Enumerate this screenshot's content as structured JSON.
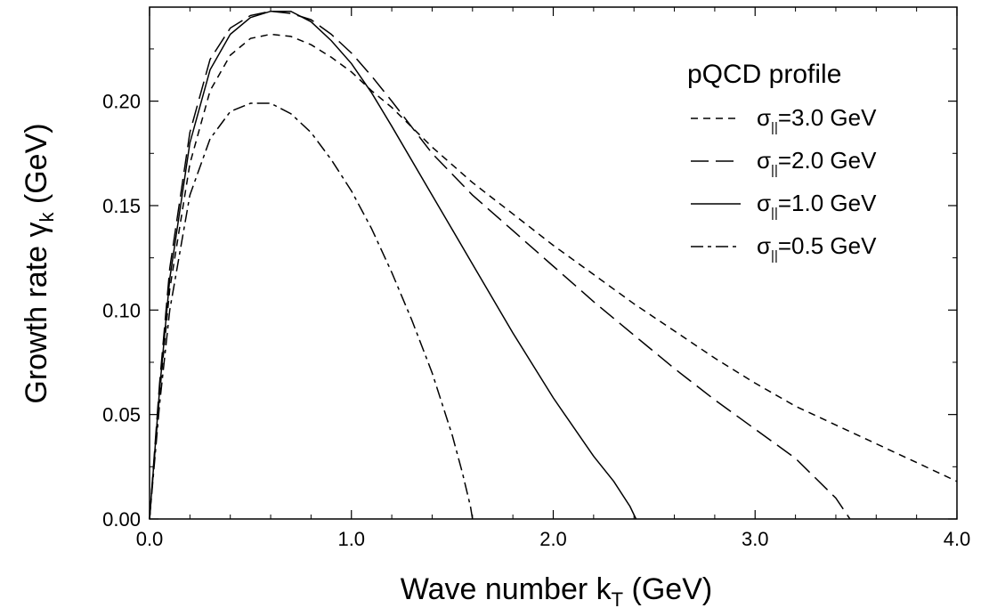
{
  "chart_data": {
    "type": "line",
    "title": "",
    "xlabel": {
      "main": "Wave number k",
      "sub": "T",
      "unit": " (GeV)"
    },
    "ylabel": {
      "main": "Growth rate γ",
      "sub": "k",
      "unit": " (GeV)"
    },
    "xlim": [
      0,
      4
    ],
    "ylim": [
      0,
      0.245
    ],
    "xticks": [
      {
        "value": 0,
        "label": "0.0"
      },
      {
        "value": 1,
        "label": "1.0"
      },
      {
        "value": 2,
        "label": "2.0"
      },
      {
        "value": 3,
        "label": "3.0"
      },
      {
        "value": 4,
        "label": "4.0"
      }
    ],
    "yticks": [
      {
        "value": 0,
        "label": "0.00"
      },
      {
        "value": 0.05,
        "label": "0.05"
      },
      {
        "value": 0.1,
        "label": "0.10"
      },
      {
        "value": 0.15,
        "label": "0.15"
      },
      {
        "value": 0.2,
        "label": "0.20"
      }
    ],
    "legend_title": "pQCD profile",
    "legend_position": "top-right",
    "series": [
      {
        "name": "σ‖=3.0 GeV",
        "label": {
          "pre": "σ",
          "sub": "||",
          "post": "=3.0 GeV"
        },
        "dash": "8,6",
        "points": [
          [
            0,
            0
          ],
          [
            0.05,
            0.06
          ],
          [
            0.1,
            0.11
          ],
          [
            0.2,
            0.17
          ],
          [
            0.3,
            0.205
          ],
          [
            0.4,
            0.222
          ],
          [
            0.5,
            0.23
          ],
          [
            0.6,
            0.232
          ],
          [
            0.7,
            0.231
          ],
          [
            0.8,
            0.227
          ],
          [
            0.9,
            0.221
          ],
          [
            1.0,
            0.214
          ],
          [
            1.1,
            0.205
          ],
          [
            1.2,
            0.197
          ],
          [
            1.4,
            0.178
          ],
          [
            1.6,
            0.161
          ],
          [
            1.8,
            0.146
          ],
          [
            2.0,
            0.131
          ],
          [
            2.2,
            0.117
          ],
          [
            2.4,
            0.103
          ],
          [
            2.6,
            0.09
          ],
          [
            2.8,
            0.077
          ],
          [
            3.0,
            0.065
          ],
          [
            3.2,
            0.054
          ],
          [
            3.4,
            0.045
          ],
          [
            3.6,
            0.036
          ],
          [
            3.8,
            0.027
          ],
          [
            4.0,
            0.018
          ]
        ]
      },
      {
        "name": "σ‖=2.0 GeV",
        "label": {
          "pre": "σ",
          "sub": "||",
          "post": "=2.0 GeV"
        },
        "dash": "20,8",
        "points": [
          [
            0,
            0
          ],
          [
            0.05,
            0.065
          ],
          [
            0.1,
            0.12
          ],
          [
            0.2,
            0.185
          ],
          [
            0.3,
            0.22
          ],
          [
            0.4,
            0.235
          ],
          [
            0.5,
            0.241
          ],
          [
            0.6,
            0.243
          ],
          [
            0.7,
            0.242
          ],
          [
            0.8,
            0.239
          ],
          [
            0.9,
            0.232
          ],
          [
            1.0,
            0.223
          ],
          [
            1.1,
            0.212
          ],
          [
            1.2,
            0.2
          ],
          [
            1.4,
            0.175
          ],
          [
            1.6,
            0.155
          ],
          [
            1.8,
            0.138
          ],
          [
            2.0,
            0.121
          ],
          [
            2.2,
            0.104
          ],
          [
            2.4,
            0.088
          ],
          [
            2.6,
            0.072
          ],
          [
            2.8,
            0.057
          ],
          [
            3.0,
            0.043
          ],
          [
            3.2,
            0.029
          ],
          [
            3.4,
            0.01
          ],
          [
            3.47,
            0
          ]
        ]
      },
      {
        "name": "σ‖=1.0 GeV",
        "label": {
          "pre": "σ",
          "sub": "||",
          "post": "=1.0 GeV"
        },
        "dash": "",
        "points": [
          [
            0,
            0
          ],
          [
            0.05,
            0.062
          ],
          [
            0.1,
            0.115
          ],
          [
            0.2,
            0.18
          ],
          [
            0.3,
            0.215
          ],
          [
            0.4,
            0.232
          ],
          [
            0.5,
            0.24
          ],
          [
            0.6,
            0.243
          ],
          [
            0.7,
            0.243
          ],
          [
            0.8,
            0.238
          ],
          [
            0.9,
            0.229
          ],
          [
            1.0,
            0.218
          ],
          [
            1.1,
            0.204
          ],
          [
            1.2,
            0.188
          ],
          [
            1.4,
            0.155
          ],
          [
            1.6,
            0.122
          ],
          [
            1.8,
            0.089
          ],
          [
            2.0,
            0.058
          ],
          [
            2.2,
            0.03
          ],
          [
            2.3,
            0.018
          ],
          [
            2.38,
            0.006
          ],
          [
            2.41,
            0
          ]
        ]
      },
      {
        "name": "σ‖=0.5 GeV",
        "label": {
          "pre": "σ",
          "sub": "||",
          "post": "=0.5 GeV"
        },
        "dash": "14,5,4,5",
        "points": [
          [
            0,
            0
          ],
          [
            0.05,
            0.055
          ],
          [
            0.1,
            0.1
          ],
          [
            0.2,
            0.155
          ],
          [
            0.3,
            0.182
          ],
          [
            0.4,
            0.195
          ],
          [
            0.5,
            0.199
          ],
          [
            0.6,
            0.199
          ],
          [
            0.7,
            0.194
          ],
          [
            0.8,
            0.185
          ],
          [
            0.9,
            0.172
          ],
          [
            1.0,
            0.157
          ],
          [
            1.1,
            0.139
          ],
          [
            1.2,
            0.118
          ],
          [
            1.3,
            0.095
          ],
          [
            1.4,
            0.07
          ],
          [
            1.5,
            0.04
          ],
          [
            1.55,
            0.022
          ],
          [
            1.59,
            0.006
          ],
          [
            1.6,
            0
          ]
        ]
      }
    ]
  }
}
